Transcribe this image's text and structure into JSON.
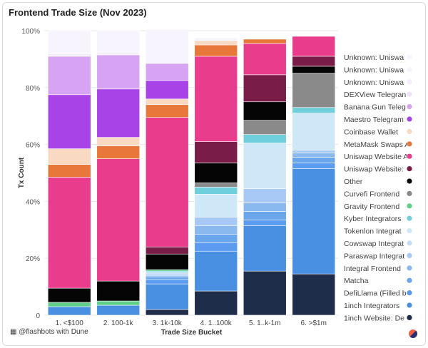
{
  "chart_data": {
    "type": "bar",
    "stacked": true,
    "title": "Frontend Trade Size (Nov 2023)",
    "xlabel": "Trade Size Bucket",
    "ylabel": "Tx Count",
    "ylim": [
      0,
      100
    ],
    "yticks": [
      "0",
      "20%",
      "40%",
      "60%",
      "80%",
      "100%"
    ],
    "categories": [
      "1. <$100",
      "2. 100-1k",
      "3. 1k-10k",
      "4. 1..100k",
      "5. 1..k-1m",
      "6. >$1m"
    ],
    "legend_position": "right",
    "series": [
      {
        "name": "1inch Website: De",
        "color": "#1e2d4a",
        "values": [
          0,
          0,
          2,
          8.5,
          15.5,
          14.5
        ]
      },
      {
        "name": "1inch Integrators",
        "color": "#4a90e2",
        "values": [
          3,
          3.5,
          9,
          14,
          16,
          37
        ]
      },
      {
        "name": "DefiLlama (Filled b",
        "color": "#5b9cf0",
        "values": [
          0,
          0,
          1.5,
          3,
          2,
          2
        ]
      },
      {
        "name": "Matcha",
        "color": "#6aa6ec",
        "values": [
          0,
          0,
          1,
          3,
          3,
          2
        ]
      },
      {
        "name": "Integral Frontend",
        "color": "#8ab9f0",
        "values": [
          0,
          0,
          0.5,
          3,
          3,
          1.5
        ]
      },
      {
        "name": "Paraswap Integrat",
        "color": "#a8c9f5",
        "values": [
          0,
          0,
          0.5,
          3,
          5,
          1
        ]
      },
      {
        "name": "Cowswap Integrat",
        "color": "#c3dcf7",
        "values": [
          0,
          0,
          0.5,
          0,
          0,
          0
        ]
      },
      {
        "name": "Tokenlon Integrat",
        "color": "#cfe8f8",
        "values": [
          0,
          0,
          0,
          8,
          16,
          13
        ]
      },
      {
        "name": "Kyber Integrators",
        "color": "#6fd0dc",
        "values": [
          0,
          0,
          0.5,
          2.5,
          3,
          2
        ]
      },
      {
        "name": "Gravity Frontend",
        "color": "#5fcf8a",
        "values": [
          1.5,
          1.5,
          0.5,
          0,
          0,
          0
        ]
      },
      {
        "name": "Curvefi Frontend",
        "color": "#8a8a8a",
        "values": [
          0,
          0,
          0,
          1.5,
          5,
          12
        ]
      },
      {
        "name": "Other",
        "color": "#050505",
        "values": [
          5,
          7,
          5.5,
          7,
          6.5,
          2.5
        ]
      },
      {
        "name": "Uniswap Website:",
        "color": "#7a1c48",
        "values": [
          0,
          0,
          2.5,
          7.5,
          9.5,
          3.5
        ]
      },
      {
        "name": "Uniswap Website A",
        "color": "#ea3c8c",
        "values": [
          39,
          43,
          45.5,
          30,
          11,
          7
        ]
      },
      {
        "name": "MetaMask Swaps A",
        "color": "#e8773a",
        "values": [
          4.5,
          4.5,
          4.5,
          4,
          1.5,
          0
        ]
      },
      {
        "name": "Coinbase Wallet",
        "color": "#f9d9c2",
        "values": [
          5.5,
          3,
          2,
          1.5,
          0,
          0
        ]
      },
      {
        "name": "Maestro Telegram",
        "color": "#a843e8",
        "values": [
          19,
          17,
          6.5,
          0,
          0,
          0
        ]
      },
      {
        "name": "Banana Gun Teleg",
        "color": "#d6a4f2",
        "values": [
          13.5,
          12,
          6,
          0,
          0,
          0
        ]
      },
      {
        "name": "DEXView Telegran",
        "color": "#efe2fa",
        "values": [
          0,
          0,
          0,
          0,
          0,
          0
        ]
      },
      {
        "name": "Unknown: Uniswa",
        "color": "#f4eefc",
        "values": [
          1,
          1,
          0,
          0,
          0,
          0
        ]
      },
      {
        "name": "Unknown: Uniswa",
        "color": "#f7f2fc",
        "values": [
          0,
          0,
          0,
          0,
          0,
          0
        ]
      },
      {
        "name": "Unknown: Uniswa",
        "color": "#f8f4fd",
        "values": [
          8,
          7.5,
          12,
          1,
          0,
          0
        ]
      }
    ]
  },
  "footer": {
    "handle": "@flashbots with",
    "brand": "Dune"
  }
}
